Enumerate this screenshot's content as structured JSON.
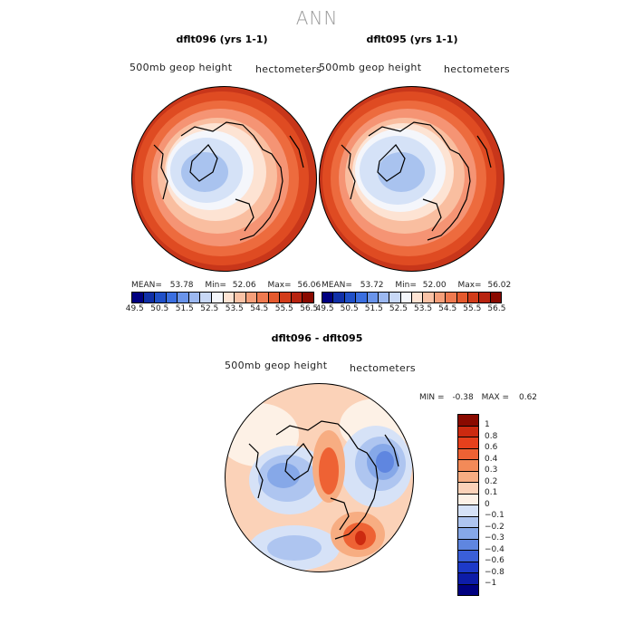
{
  "main_title": "ANN",
  "panels": [
    {
      "id": "left",
      "title": "dflt096 (yrs 1-1)",
      "variable": "500mb geop height",
      "units": "hectometers",
      "mean_label": "MEAN=",
      "mean": "53.78",
      "min_label": "Min=",
      "min": "52.06",
      "max_label": "Max=",
      "max": "56.06"
    },
    {
      "id": "right",
      "title": "dflt095 (yrs 1-1)",
      "variable": "500mb geop height",
      "units": "hectometers",
      "mean_label": "MEAN=",
      "mean": "53.72",
      "min_label": "Min=",
      "min": "52.00",
      "max_label": "Max=",
      "max": "56.02"
    },
    {
      "id": "diff",
      "title": "dflt096 - dflt095",
      "variable": "500mb geop height",
      "units": "hectometers",
      "min_label": "MIN =",
      "min": "-0.38",
      "max_label": "MAX =",
      "max": "0.62"
    }
  ],
  "abs_colorbar": {
    "colors": [
      "#000080",
      "#1030a8",
      "#2050c8",
      "#3b6fe0",
      "#6a94ea",
      "#9cb8f0",
      "#c8d8f6",
      "#f4f6fb",
      "#fde3d3",
      "#f9c2a6",
      "#f59f7a",
      "#ef7a50",
      "#e55a2e",
      "#d23c1a",
      "#b82410",
      "#8a0a00"
    ],
    "ticks": [
      "49.5",
      "50.5",
      "51.5",
      "52.5",
      "53.5",
      "54.5",
      "55.5",
      "56.5"
    ]
  },
  "diff_colorbar": {
    "colors": [
      "#8a0a00",
      "#cc2a10",
      "#e6401c",
      "#ee6234",
      "#f38a58",
      "#f7ad82",
      "#fbd2b8",
      "#fdf1e6",
      "#d6e2f7",
      "#aec5f0",
      "#86a8e8",
      "#5f86e0",
      "#3a5fd8",
      "#1d3ac8",
      "#0d1ca8",
      "#000080"
    ],
    "labels": [
      "1",
      "0.8",
      "0.6",
      "0.4",
      "0.3",
      "0.2",
      "0.1",
      "0",
      "−0.1",
      "−0.2",
      "−0.3",
      "−0.4",
      "−0.6",
      "−0.8",
      "−1"
    ]
  }
}
